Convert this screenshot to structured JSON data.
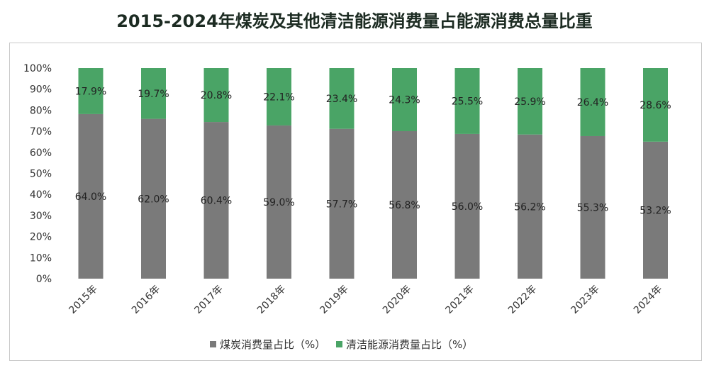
{
  "chart_data": {
    "type": "bar",
    "stacked": "percent",
    "title": "2015-2024年煤炭及其他清洁能源消费量占能源消费总量比重",
    "categories": [
      "2015年",
      "2016年",
      "2017年",
      "2018年",
      "2019年",
      "2020年",
      "2021年",
      "2022年",
      "2023年",
      "2024年"
    ],
    "series": [
      {
        "name": "煤炭消费量占比（%）",
        "color": "#7a7a7a",
        "values": [
          64.0,
          62.0,
          60.4,
          59.0,
          57.7,
          56.8,
          56.0,
          56.2,
          55.3,
          53.2
        ]
      },
      {
        "name": "清洁能源消费量占比（%）",
        "color": "#4aa466",
        "values": [
          17.9,
          19.7,
          20.8,
          22.1,
          23.4,
          24.3,
          25.5,
          25.9,
          26.4,
          28.6
        ]
      }
    ],
    "data_labels": {
      "coal": [
        "64.0%",
        "62.0%",
        "60.4%",
        "59.0%",
        "57.7%",
        "56.8%",
        "56.0%",
        "56.2%",
        "55.3%",
        "53.2%"
      ],
      "clean": [
        "17.9%",
        "19.7%",
        "20.8%",
        "22.1%",
        "23.4%",
        "24.3%",
        "25.5%",
        "25.9%",
        "26.4%",
        "28.6%"
      ]
    },
    "yticks": [
      "0%",
      "10%",
      "20%",
      "30%",
      "40%",
      "50%",
      "60%",
      "70%",
      "80%",
      "90%",
      "100%"
    ],
    "ylim": [
      0,
      100
    ],
    "xlabel": "",
    "ylabel": "",
    "grid": false,
    "legend": "bottom-center"
  }
}
